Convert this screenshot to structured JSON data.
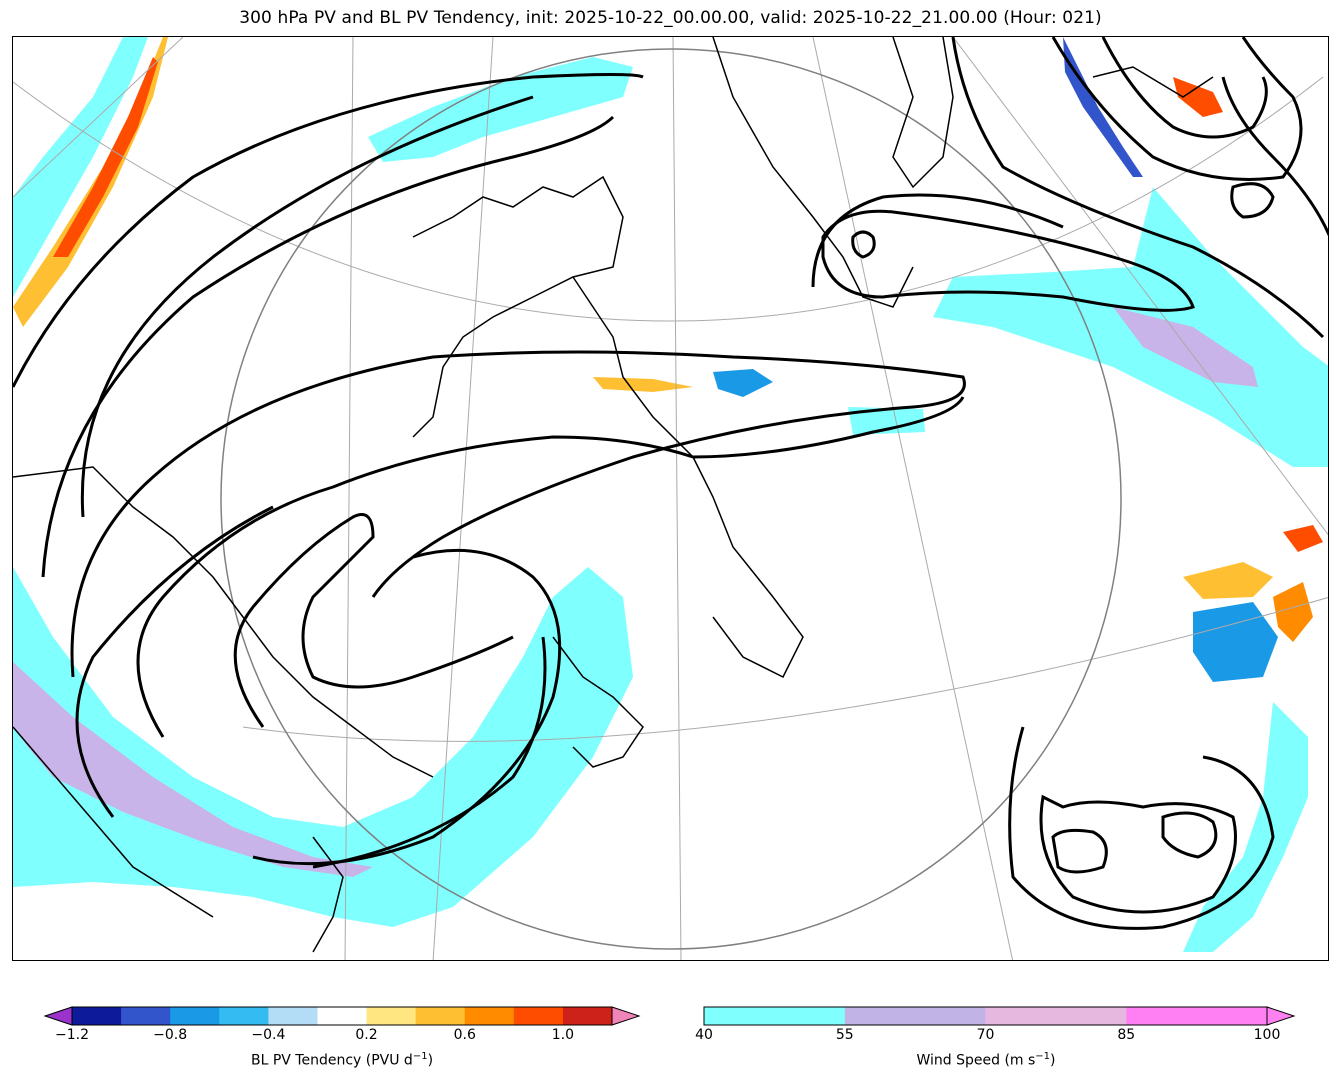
{
  "title": "300 hPa PV and BL PV Tendency, init: 2025-10-22_00.00.00, valid: 2025-10-22_21.00.00 (Hour: 021)",
  "pv_tendency_colorbar": {
    "label_main": "BL PV Tendency (PVU d",
    "label_exp": "−1",
    "label_close": ")",
    "ticks": [
      "−1.2",
      "−0.8",
      "−0.4",
      "0.2",
      "0.6",
      "1.0"
    ],
    "colors": {
      "under": "#9933cc",
      "levels": [
        "#0d1a99",
        "#3355cc",
        "#1a99e6",
        "#33bbf2",
        "#b3dcf7",
        "#ffffff",
        "#ffe680",
        "#ffbf33",
        "#ff8c00",
        "#ff4d00",
        "#cc2219"
      ],
      "over": "#f285b8"
    }
  },
  "wind_speed_colorbar": {
    "label_main": "Wind Speed (m s",
    "label_exp": "−1",
    "label_close": ")",
    "ticks": [
      "40",
      "55",
      "70",
      "85",
      "100"
    ],
    "colors": {
      "levels": [
        "#80ffff",
        "#c2b3e6",
        "#e6b8e0",
        "#ff80f2"
      ],
      "over": "#ff80f2"
    }
  },
  "map_colors": {
    "jet_fill": "#80ffff",
    "strong_jet_fill": "#c8b4e8",
    "pv_contour": "#000000",
    "coastline": "#000000",
    "graticule": "#aaaaaa",
    "projection_circle": "#808080"
  }
}
